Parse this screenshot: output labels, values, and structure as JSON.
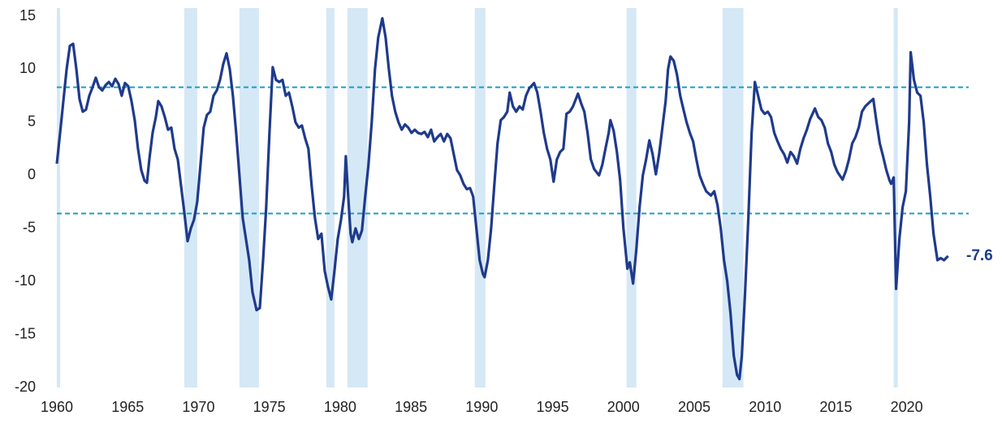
{
  "chart_data": {
    "type": "line",
    "x": [
      1960.0,
      1960.23,
      1960.46,
      1960.69,
      1960.92,
      1961.15,
      1961.38,
      1961.6,
      1961.83,
      1962.06,
      1962.29,
      1962.52,
      1962.75,
      1962.98,
      1963.21,
      1963.44,
      1963.67,
      1963.9,
      1964.13,
      1964.36,
      1964.58,
      1964.81,
      1965.04,
      1965.27,
      1965.5,
      1965.73,
      1965.96,
      1966.19,
      1966.36,
      1966.53,
      1966.76,
      1966.99,
      1967.16,
      1967.39,
      1967.62,
      1967.85,
      1968.08,
      1968.31,
      1968.54,
      1968.77,
      1969.0,
      1969.23,
      1969.46,
      1969.68,
      1969.91,
      1970.14,
      1970.37,
      1970.6,
      1970.83,
      1971.06,
      1971.29,
      1971.52,
      1971.75,
      1971.98,
      1972.21,
      1972.43,
      1972.66,
      1972.89,
      1973.12,
      1973.35,
      1973.58,
      1973.81,
      1974.1,
      1974.33,
      1974.56,
      1974.78,
      1975.01,
      1975.24,
      1975.47,
      1975.7,
      1975.93,
      1976.16,
      1976.39,
      1976.62,
      1976.85,
      1977.08,
      1977.3,
      1977.53,
      1977.76,
      1977.99,
      1978.22,
      1978.45,
      1978.68,
      1978.91,
      1979.14,
      1979.37,
      1979.6,
      1979.83,
      1980.06,
      1980.28,
      1980.4,
      1980.57,
      1980.74,
      1980.86,
      1981.09,
      1981.32,
      1981.54,
      1981.77,
      1982.0,
      1982.23,
      1982.46,
      1982.69,
      1982.98,
      1983.21,
      1983.44,
      1983.66,
      1983.89,
      1984.12,
      1984.35,
      1984.58,
      1984.81,
      1985.04,
      1985.27,
      1985.5,
      1985.73,
      1985.96,
      1986.19,
      1986.42,
      1986.64,
      1986.87,
      1987.1,
      1987.33,
      1987.56,
      1987.79,
      1988.02,
      1988.25,
      1988.48,
      1988.71,
      1988.94,
      1989.17,
      1989.39,
      1989.62,
      1989.85,
      1990.08,
      1990.2,
      1990.43,
      1990.66,
      1990.88,
      1991.11,
      1991.34,
      1991.57,
      1991.8,
      1991.97,
      1992.2,
      1992.43,
      1992.66,
      1992.89,
      1993.12,
      1993.35,
      1993.69,
      1993.92,
      1994.15,
      1994.38,
      1994.61,
      1994.84,
      1995.07,
      1995.3,
      1995.53,
      1995.76,
      1995.98,
      1996.21,
      1996.44,
      1996.79,
      1997.01,
      1997.24,
      1997.47,
      1997.7,
      1997.93,
      1998.16,
      1998.28,
      1998.51,
      1998.73,
      1998.96,
      1999.08,
      1999.31,
      1999.54,
      1999.77,
      2000.0,
      2000.28,
      2000.45,
      2000.68,
      2000.91,
      2001.14,
      2001.37,
      2001.6,
      2001.83,
      2002.06,
      2002.29,
      2002.52,
      2002.75,
      2002.98,
      2003.15,
      2003.32,
      2003.55,
      2003.78,
      2004.01,
      2004.24,
      2004.46,
      2004.69,
      2004.92,
      2005.15,
      2005.38,
      2005.61,
      2005.84,
      2006.18,
      2006.41,
      2006.64,
      2006.87,
      2007.1,
      2007.33,
      2007.56,
      2007.79,
      2008.02,
      2008.19,
      2008.36,
      2008.59,
      2008.82,
      2009.05,
      2009.28,
      2009.51,
      2009.74,
      2009.97,
      2010.19,
      2010.42,
      2010.65,
      2010.88,
      2011.11,
      2011.34,
      2011.57,
      2011.8,
      2012.03,
      2012.26,
      2012.49,
      2012.72,
      2012.95,
      2013.18,
      2013.52,
      2013.75,
      2013.98,
      2014.21,
      2014.44,
      2014.67,
      2014.89,
      2015.12,
      2015.47,
      2015.7,
      2015.92,
      2016.15,
      2016.38,
      2016.61,
      2016.84,
      2017.07,
      2017.3,
      2017.64,
      2017.87,
      2018.1,
      2018.33,
      2018.56,
      2018.79,
      2018.9,
      2019.08,
      2019.25,
      2019.48,
      2019.71,
      2019.94,
      2020.17,
      2020.28,
      2020.51,
      2020.74,
      2020.97,
      2021.2,
      2021.43,
      2021.66,
      2021.89,
      2022.17,
      2022.4,
      2022.63,
      2022.92
    ],
    "series": [
      {
        "color": "#1f3a8c",
        "values": [
          1.1,
          4.0,
          7,
          10,
          12.2,
          12.4,
          10,
          7.2,
          6,
          6.2,
          7.5,
          8.3,
          9.2,
          8.3,
          8,
          8.5,
          8.8,
          8.4,
          9.1,
          8.6,
          7.5,
          8.7,
          8.4,
          7,
          5.2,
          2.5,
          0.5,
          -0.5,
          -0.7,
          1.5,
          4,
          5.5,
          7,
          6.5,
          5.5,
          4.3,
          4.5,
          2.5,
          1.5,
          -1,
          -3.5,
          -6.2,
          -5,
          -4.2,
          -2.5,
          1,
          4.5,
          5.7,
          6,
          7.5,
          8,
          9,
          10.5,
          11.5,
          10,
          7.5,
          4,
          0,
          -4,
          -6,
          -8,
          -11,
          -12.7,
          -12.5,
          -8,
          -3,
          4,
          10.2,
          9,
          8.8,
          9,
          7.5,
          7.8,
          6.5,
          5,
          4.5,
          4.7,
          3.5,
          2.5,
          -1,
          -4,
          -6,
          -5.5,
          -9,
          -10.5,
          -11.7,
          -9,
          -6,
          -4.2,
          -2,
          1.8,
          -2,
          -5.5,
          -6.3,
          -5,
          -6,
          -5.2,
          -2,
          1,
          5,
          10,
          13,
          14.8,
          13,
          10,
          7.5,
          6,
          5,
          4.3,
          4.8,
          4.5,
          4,
          4.3,
          4,
          3.9,
          4.1,
          3.6,
          4.3,
          3.2,
          3.6,
          3.9,
          3.2,
          3.9,
          3.5,
          2,
          0.5,
          0,
          -0.8,
          -1.3,
          -1.2,
          -2,
          -5,
          -8,
          -9.3,
          -9.6,
          -8,
          -5,
          -1,
          3,
          5.2,
          5.5,
          6,
          7.8,
          6.5,
          6,
          6.5,
          6.2,
          7.5,
          8.2,
          8.7,
          7.8,
          6,
          4,
          2.5,
          1.5,
          -0.6,
          1.5,
          2.2,
          2.5,
          5.8,
          6,
          6.5,
          7.7,
          6.8,
          6,
          4,
          1.5,
          0.6,
          0.2,
          0,
          1,
          2.5,
          4,
          5.2,
          4.2,
          2.2,
          -0.5,
          -5,
          -8.8,
          -8.2,
          -10.2,
          -7,
          -3,
          0,
          1.5,
          3.3,
          2,
          0.1,
          2,
          4.5,
          7,
          10,
          11.2,
          10.8,
          9.5,
          7.5,
          6.2,
          5,
          4,
          3.2,
          1.5,
          0,
          -0.8,
          -1.5,
          -1.9,
          -1.5,
          -2.8,
          -5,
          -8,
          -10,
          -13,
          -17,
          -18.8,
          -19.2,
          -17,
          -11,
          -4,
          4,
          8.8,
          7.5,
          6.2,
          5.8,
          6,
          5.5,
          4,
          3.2,
          2.5,
          2,
          1.2,
          2.2,
          1.8,
          1.1,
          2.5,
          3.5,
          4.3,
          5.3,
          6.3,
          5.5,
          5.2,
          4.5,
          3,
          2.2,
          1,
          0.3,
          -0.4,
          0.4,
          1.5,
          3,
          3.6,
          4.5,
          6,
          6.5,
          6.8,
          7.2,
          5,
          3,
          1.8,
          0.5,
          -0.5,
          -0.8,
          -0.2,
          -10.7,
          -6,
          -3,
          -1.5,
          5,
          11.6,
          9,
          7.8,
          7.5,
          5,
          1,
          -2,
          -5.5,
          -8,
          -7.8,
          -8,
          -7.6
        ]
      }
    ],
    "xlim": [
      1960,
      2023
    ],
    "xticks": [
      1960,
      1965,
      1970,
      1975,
      1980,
      1985,
      1990,
      1995,
      2000,
      2005,
      2010,
      2015,
      2020
    ],
    "ylim": [
      -20,
      15
    ],
    "yticks": [
      -20,
      -15,
      -10,
      -5,
      0,
      5,
      10,
      15
    ],
    "shaded_ranges": [
      [
        1960.0,
        1960.23
      ],
      [
        1969.0,
        1969.91
      ],
      [
        1972.89,
        1974.27
      ],
      [
        1979.02,
        1979.6
      ],
      [
        1980.51,
        1981.94
      ],
      [
        1989.51,
        1990.26
      ],
      [
        2000.22,
        2000.91
      ],
      [
        2006.99,
        2008.47
      ],
      [
        2019.08,
        2019.37
      ]
    ],
    "shade_color": "#d5e8f5",
    "reference_lines": [
      8.3,
      -3.6
    ],
    "reference_color": "#1b9dc9",
    "annotations": [
      {
        "text": "-7.6",
        "y": -7.6
      }
    ]
  }
}
